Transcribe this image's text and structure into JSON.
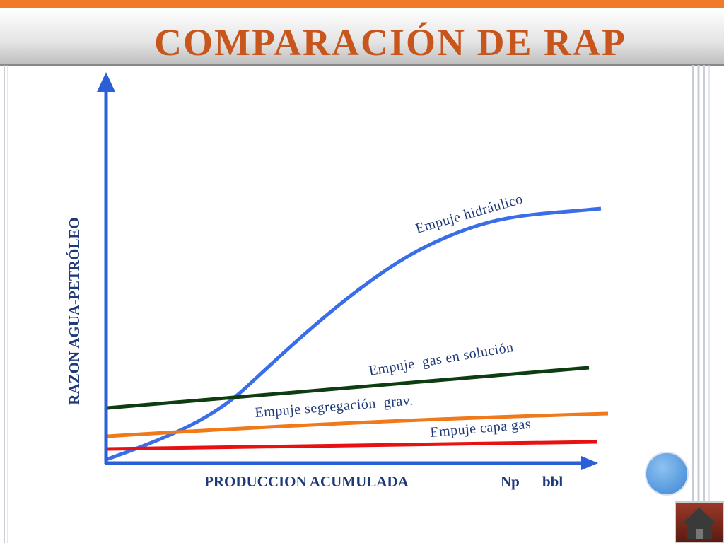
{
  "title": "COMPARACIÓN DE RAP",
  "y_axis_label": "RAZON AGUA-PETRÓLEO",
  "x_axis_label": {
    "name": "PRODUCCION ACUMULADA",
    "variable": "Np",
    "unit": "bbl"
  },
  "curves": [
    {
      "label": "Empuje hidráulico"
    },
    {
      "label": "Empuje  gas en solución"
    },
    {
      "label": "Empuje segregación  grav."
    },
    {
      "label": "Empuje capa gas"
    }
  ]
}
